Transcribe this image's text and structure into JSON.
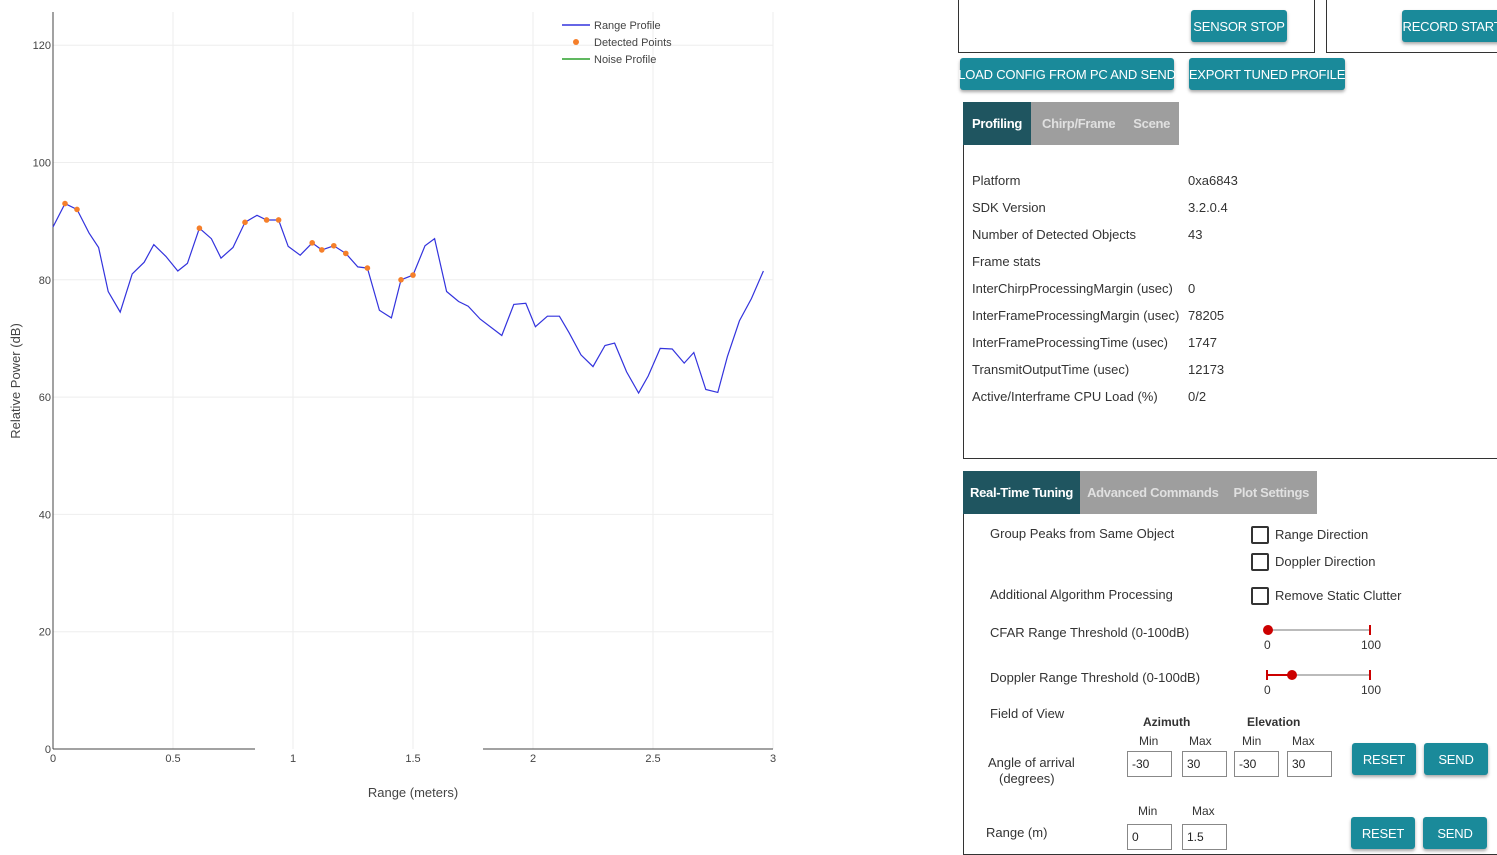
{
  "chart_data": {
    "type": "line",
    "xlabel": "Range (meters)",
    "ylabel": "Relative Power (dB)",
    "xlim": [
      0,
      3
    ],
    "ylim": [
      0,
      125
    ],
    "x_ticks": [
      "0",
      "0.5",
      "1",
      "1.5",
      "2",
      "2.5",
      "3"
    ],
    "y_ticks": [
      "0",
      "20",
      "40",
      "60",
      "80",
      "100",
      "120"
    ],
    "grid": true,
    "legend_position": "top-right",
    "series": [
      {
        "name": "Range Profile",
        "color": "#3333dd",
        "style": "line",
        "points": [
          [
            0,
            89
          ],
          [
            0.05,
            93
          ],
          [
            0.1,
            92
          ],
          [
            0.15,
            88
          ],
          [
            0.19,
            85.5
          ],
          [
            0.23,
            78
          ],
          [
            0.28,
            74.5
          ],
          [
            0.33,
            81
          ],
          [
            0.38,
            83
          ],
          [
            0.42,
            86
          ],
          [
            0.47,
            84
          ],
          [
            0.52,
            81.5
          ],
          [
            0.56,
            82.8
          ],
          [
            0.61,
            88.8
          ],
          [
            0.66,
            87
          ],
          [
            0.7,
            83.7
          ],
          [
            0.75,
            85.5
          ],
          [
            0.8,
            89.8
          ],
          [
            0.85,
            91
          ],
          [
            0.89,
            90.2
          ],
          [
            0.94,
            90.2
          ],
          [
            0.98,
            85.7
          ],
          [
            1.03,
            84.2
          ],
          [
            1.08,
            86.3
          ],
          [
            1.12,
            85.1
          ],
          [
            1.17,
            85.8
          ],
          [
            1.22,
            84.5
          ],
          [
            1.27,
            82.2
          ],
          [
            1.31,
            82
          ],
          [
            1.36,
            74.8
          ],
          [
            1.41,
            73.5
          ],
          [
            1.45,
            80
          ],
          [
            1.5,
            80.8
          ],
          [
            1.55,
            85.8
          ],
          [
            1.59,
            87
          ],
          [
            1.64,
            78
          ],
          [
            1.69,
            76.3
          ],
          [
            1.73,
            75.5
          ],
          [
            1.78,
            73.3
          ],
          [
            1.87,
            70.5
          ],
          [
            1.92,
            75.8
          ],
          [
            1.97,
            76
          ],
          [
            2.01,
            72
          ],
          [
            2.06,
            73.8
          ],
          [
            2.11,
            73.8
          ],
          [
            2.15,
            71
          ],
          [
            2.2,
            67.2
          ],
          [
            2.25,
            65.2
          ],
          [
            2.3,
            68.8
          ],
          [
            2.34,
            69.2
          ],
          [
            2.39,
            64.3
          ],
          [
            2.44,
            60.7
          ],
          [
            2.48,
            63.6
          ],
          [
            2.53,
            68.3
          ],
          [
            2.58,
            68.2
          ],
          [
            2.63,
            65.8
          ],
          [
            2.67,
            67.6
          ],
          [
            2.72,
            61.3
          ],
          [
            2.77,
            60.8
          ],
          [
            2.81,
            66.9
          ],
          [
            2.86,
            73
          ],
          [
            2.91,
            76.8
          ],
          [
            2.96,
            81.5
          ]
        ]
      },
      {
        "name": "Detected Points",
        "color": "#f57f2a",
        "style": "markers",
        "points": [
          [
            0.05,
            93
          ],
          [
            0.1,
            92
          ],
          [
            0.61,
            88.8
          ],
          [
            0.8,
            89.8
          ],
          [
            0.89,
            90.2
          ],
          [
            0.94,
            90.2
          ],
          [
            1.08,
            86.3
          ],
          [
            1.12,
            85.1
          ],
          [
            1.17,
            85.8
          ],
          [
            1.22,
            84.5
          ],
          [
            1.31,
            82
          ],
          [
            1.45,
            80
          ],
          [
            1.5,
            80.8
          ]
        ]
      },
      {
        "name": "Noise Profile",
        "color": "#2ca02c",
        "style": "line",
        "points": []
      }
    ]
  },
  "buttons": {
    "sensor_stop": "SENSOR STOP",
    "record_start": "RECORD START",
    "load_config": "LOAD CONFIG FROM PC AND SEND",
    "export_profile": "EXPORT TUNED PROFILE"
  },
  "top_tabs": [
    "Profiling",
    "Chirp/Frame",
    "Scene"
  ],
  "profiling": {
    "rows": [
      {
        "label": "Platform",
        "value": "0xa6843"
      },
      {
        "label": "SDK Version",
        "value": "3.2.0.4"
      },
      {
        "label": "Number of Detected Objects",
        "value": "43"
      },
      {
        "label": "Frame stats",
        "value": ""
      },
      {
        "label": "InterChirpProcessingMargin (usec)",
        "value": "0"
      },
      {
        "label": "InterFrameProcessingMargin (usec)",
        "value": "78205"
      },
      {
        "label": "InterFrameProcessingTime (usec)",
        "value": "1747"
      },
      {
        "label": "TransmitOutputTime (usec)",
        "value": "12173"
      },
      {
        "label": "Active/Interframe CPU Load (%)",
        "value": "0/2"
      }
    ]
  },
  "bottom_tabs": [
    "Real-Time Tuning",
    "Advanced Commands",
    "Plot Settings"
  ],
  "tuning": {
    "group_peaks_label": "Group Peaks from Same Object",
    "range_direction": "Range Direction",
    "doppler_direction": "Doppler Direction",
    "additional_label": "Additional Algorithm Processing",
    "remove_static": "Remove Static Clutter",
    "cfar_label": "CFAR Range Threshold (0-100dB)",
    "cfar_min": "0",
    "cfar_max": "100",
    "cfar_value": 0,
    "doppler_label": "Doppler Range Threshold (0-100dB)",
    "doppler_min": "0",
    "doppler_max": "100",
    "doppler_value": 24,
    "fov_label": "Field of View",
    "azimuth": "Azimuth",
    "elevation": "Elevation",
    "min": "Min",
    "max": "Max",
    "aoa_label_1": "Angle of arrival",
    "aoa_label_2": "(degrees)",
    "az_min": "-30",
    "az_max": "30",
    "el_min": "-30",
    "el_max": "30",
    "range_label": "Range (m)",
    "range_min": "0",
    "range_max": "1.5",
    "reset": "RESET",
    "send": "SEND"
  }
}
